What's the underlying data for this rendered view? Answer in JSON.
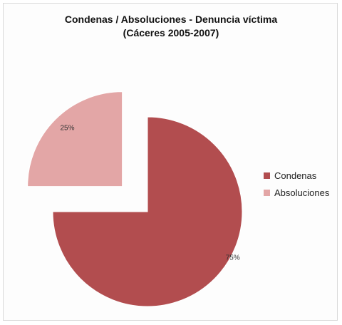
{
  "chart_data": {
    "type": "pie",
    "title": "Condenas / Absoluciones - Denuncia víctima",
    "subtitle": "(Cáceres 2005-2007)",
    "slices": [
      {
        "label": "Condenas",
        "value": 75,
        "data_label": "75%",
        "color": "#b24d4f"
      },
      {
        "label": "Absoluciones",
        "value": 25,
        "data_label": "25%",
        "color": "#e3a6a6"
      }
    ],
    "legend_position": "right",
    "exploded": true
  }
}
